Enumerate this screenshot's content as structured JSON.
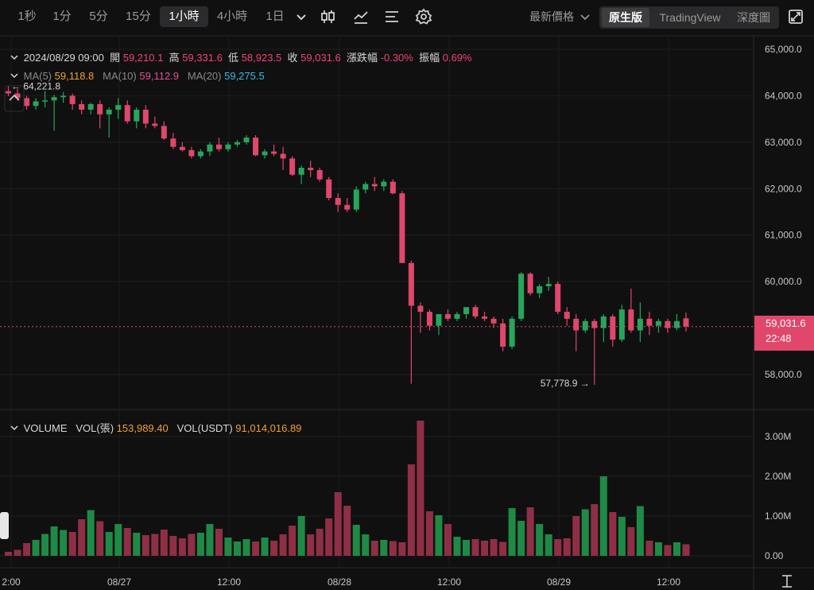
{
  "toolbar": {
    "intervals": [
      "1秒",
      "1分",
      "5分",
      "15分",
      "1小時",
      "4小時",
      "1日"
    ],
    "active_interval": "1小時",
    "price_type": "最新價格",
    "views": [
      "原生版",
      "TradingView",
      "深度圖"
    ],
    "active_view": "原生版"
  },
  "ohlc": {
    "datetime": "2024/08/29 09:00",
    "open_label": "開",
    "open": "59,210.1",
    "high_label": "高",
    "high": "59,331.6",
    "low_label": "低",
    "low": "58,923.5",
    "close_label": "收",
    "close": "59,031.6",
    "change_label": "漲跌幅",
    "change": "-0.30%",
    "amp_label": "振幅",
    "amp": "0.69%"
  },
  "ma": {
    "ma5_label": "MA(5)",
    "ma5": "59,118.8",
    "ma10_label": "MA(10)",
    "ma10": "59,112.9",
    "ma20_label": "MA(20)",
    "ma20": "59,275.5"
  },
  "volume": {
    "title": "VOLUME",
    "vol_label": "VOL(張)",
    "vol": "153,989.40",
    "vol_usdt_label": "VOL(USDT)",
    "vol_usdt": "91,014,016.89"
  },
  "current_price": {
    "price": "59,031.6",
    "countdown": "22:48"
  },
  "colors": {
    "up": "#26a65b",
    "down": "#e0476a",
    "background": "#101011"
  },
  "chart_data": {
    "type": "candlestick",
    "price_axis": {
      "ticks": [
        "65,000.0",
        "64,000.0",
        "63,000.0",
        "62,000.0",
        "61,000.0",
        "60,000.0",
        "58,000.0"
      ],
      "ylim": [
        57500,
        65100
      ]
    },
    "volume_axis": {
      "ticks": [
        "3.00M",
        "2.00M",
        "1.00M",
        "0.00"
      ],
      "ylim": [
        0,
        3500000
      ]
    },
    "time_axis": [
      "2:00",
      "08/27",
      "12:00",
      "08/28",
      "12:00",
      "08/29",
      "12:00"
    ],
    "annotations": {
      "max_label": "64,221.8",
      "min_label": "57,778.9"
    },
    "candles": [
      [
        64100,
        64222,
        63990,
        64050
      ],
      [
        64050,
        64150,
        63900,
        63950
      ],
      [
        63950,
        64000,
        63700,
        63780
      ],
      [
        63780,
        63950,
        63700,
        63880
      ],
      [
        63880,
        64100,
        63750,
        63900
      ],
      [
        63900,
        64020,
        63250,
        63970
      ],
      [
        63970,
        64080,
        63850,
        64000
      ],
      [
        64000,
        64050,
        63700,
        63820
      ],
      [
        63820,
        63900,
        63600,
        63700
      ],
      [
        63700,
        63850,
        63600,
        63820
      ],
      [
        63820,
        63900,
        63300,
        63600
      ],
      [
        63600,
        63750,
        63100,
        63700
      ],
      [
        63700,
        63950,
        63500,
        63800
      ],
      [
        63800,
        63900,
        63400,
        63450
      ],
      [
        63450,
        63750,
        63300,
        63700
      ],
      [
        63700,
        63800,
        63300,
        63400
      ],
      [
        63400,
        63550,
        63300,
        63350
      ],
      [
        63350,
        63450,
        63050,
        63080
      ],
      [
        63080,
        63200,
        62850,
        62900
      ],
      [
        62900,
        63000,
        62800,
        62830
      ],
      [
        62830,
        62900,
        62650,
        62700
      ],
      [
        62700,
        62850,
        62650,
        62800
      ],
      [
        62800,
        63000,
        62700,
        62950
      ],
      [
        62950,
        63100,
        62800,
        62850
      ],
      [
        62850,
        63000,
        62800,
        62950
      ],
      [
        62950,
        63050,
        62900,
        63000
      ],
      [
        63000,
        63150,
        62950,
        63100
      ],
      [
        63100,
        63150,
        62700,
        62720
      ],
      [
        62720,
        62850,
        62650,
        62800
      ],
      [
        62800,
        62950,
        62700,
        62750
      ],
      [
        62750,
        62900,
        62400,
        62650
      ],
      [
        62650,
        62700,
        62280,
        62300
      ],
      [
        62300,
        62500,
        62100,
        62450
      ],
      [
        62450,
        62600,
        62250,
        62400
      ],
      [
        62400,
        62450,
        62150,
        62200
      ],
      [
        62200,
        62250,
        61750,
        61800
      ],
      [
        61800,
        61900,
        61500,
        61650
      ],
      [
        61650,
        61800,
        61500,
        61550
      ],
      [
        61550,
        62050,
        61500,
        61980
      ],
      [
        61980,
        62150,
        61900,
        62100
      ],
      [
        62100,
        62250,
        61950,
        62050
      ],
      [
        62050,
        62200,
        61950,
        62150
      ],
      [
        62150,
        62200,
        61880,
        61900
      ],
      [
        61900,
        61950,
        60400,
        60400
      ],
      [
        60400,
        60450,
        57800,
        59480
      ],
      [
        59480,
        59550,
        58900,
        59350
      ],
      [
        59350,
        59400,
        58950,
        59050
      ],
      [
        59050,
        59300,
        58850,
        59300
      ],
      [
        59300,
        59400,
        59150,
        59200
      ],
      [
        59200,
        59350,
        59150,
        59300
      ],
      [
        59300,
        59450,
        59200,
        59450
      ],
      [
        59450,
        59500,
        59200,
        59250
      ],
      [
        59250,
        59350,
        59150,
        59200
      ],
      [
        59200,
        59250,
        59000,
        59100
      ],
      [
        59100,
        59200,
        58500,
        58600
      ],
      [
        58600,
        59250,
        58550,
        59200
      ],
      [
        59200,
        60200,
        59150,
        60170
      ],
      [
        60170,
        60200,
        59700,
        59750
      ],
      [
        59750,
        59950,
        59650,
        59900
      ],
      [
        59900,
        60100,
        59800,
        59950
      ],
      [
        59950,
        60000,
        59300,
        59350
      ],
      [
        59350,
        59450,
        59050,
        59200
      ],
      [
        59200,
        59300,
        58500,
        58950
      ],
      [
        58950,
        59200,
        58900,
        59150
      ],
      [
        59150,
        59200,
        57780,
        59000
      ],
      [
        59000,
        59300,
        58700,
        59250
      ],
      [
        59250,
        59300,
        58600,
        58750
      ],
      [
        58750,
        59500,
        58700,
        59400
      ],
      [
        59400,
        59850,
        58900,
        58950
      ],
      [
        58950,
        59550,
        58700,
        59200
      ],
      [
        59200,
        59350,
        58850,
        59050
      ],
      [
        59050,
        59200,
        58900,
        59150
      ],
      [
        59150,
        59200,
        58900,
        59000
      ],
      [
        59000,
        59300,
        58950,
        59150
      ],
      [
        59210,
        59332,
        58924,
        59032
      ]
    ],
    "volumes": [
      100000,
      150000,
      320000,
      400000,
      550000,
      740000,
      650000,
      600000,
      920000,
      1150000,
      870000,
      600000,
      800000,
      700000,
      580000,
      520000,
      550000,
      660000,
      500000,
      440000,
      550000,
      580000,
      800000,
      680000,
      460000,
      360000,
      420000,
      360000,
      460000,
      380000,
      540000,
      760000,
      1000000,
      540000,
      680000,
      940000,
      1600000,
      1260000,
      780000,
      540000,
      380000,
      400000,
      370000,
      340000,
      2300000,
      3400000,
      1120000,
      1020000,
      800000,
      480000,
      400000,
      420000,
      380000,
      420000,
      350000,
      1200000,
      880000,
      1220000,
      800000,
      540000,
      420000,
      440000,
      1000000,
      1170000,
      1300000,
      2000000,
      1100000,
      980000,
      720000,
      1250000,
      380000,
      340000,
      270000,
      340000,
      290000
    ]
  }
}
